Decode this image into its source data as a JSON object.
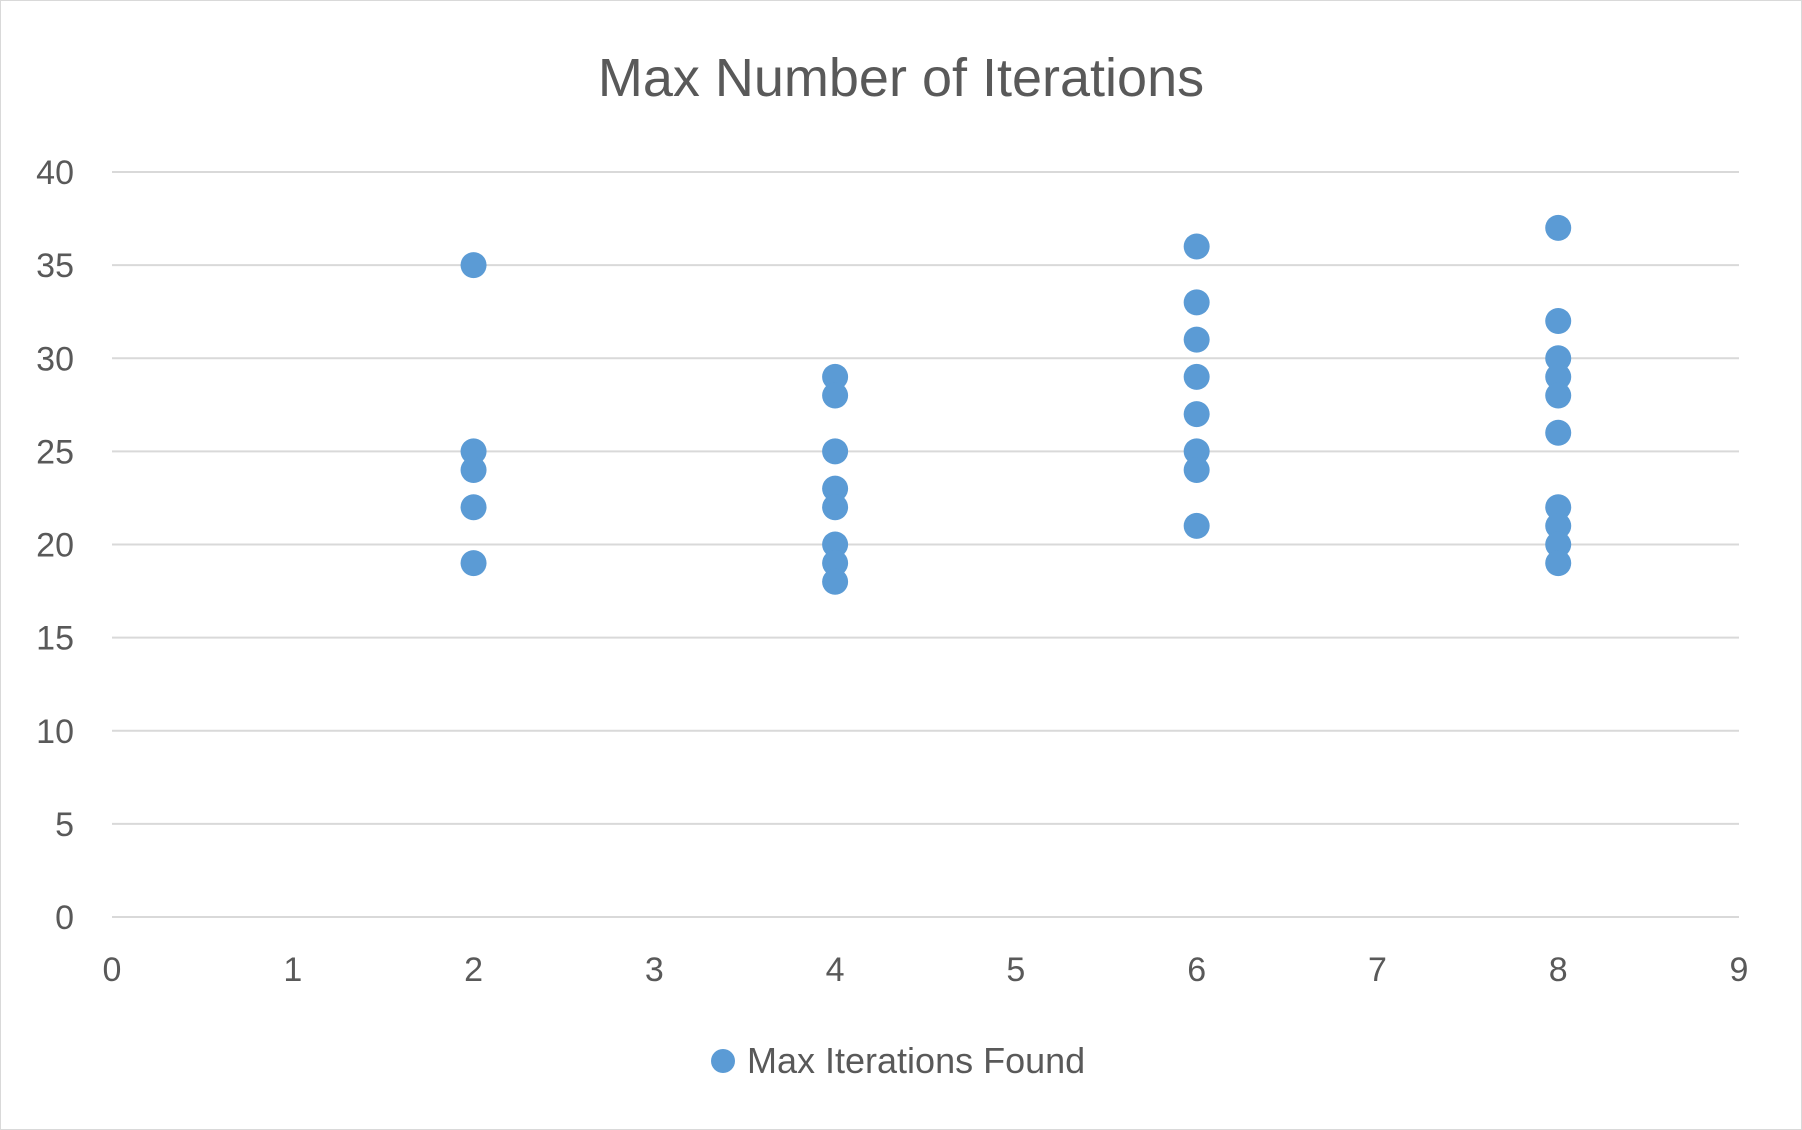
{
  "chart_data": {
    "type": "scatter",
    "title": "Max Number of Iterations",
    "xlabel": "",
    "ylabel": "",
    "xlim": [
      0,
      9
    ],
    "ylim": [
      0,
      40
    ],
    "x_ticks": [
      "0",
      "1",
      "2",
      "3",
      "4",
      "5",
      "6",
      "7",
      "8",
      "9"
    ],
    "y_ticks": [
      "0",
      "5",
      "10",
      "15",
      "20",
      "25",
      "30",
      "35",
      "40"
    ],
    "grid": "horizontal",
    "legend_position": "bottom",
    "series": [
      {
        "name": "Max Iterations Found",
        "color": "#5b9bd5",
        "marker": "circle",
        "points": [
          {
            "x": 2,
            "y": 35
          },
          {
            "x": 2,
            "y": 25
          },
          {
            "x": 2,
            "y": 24
          },
          {
            "x": 2,
            "y": 22
          },
          {
            "x": 2,
            "y": 19
          },
          {
            "x": 4,
            "y": 29
          },
          {
            "x": 4,
            "y": 28
          },
          {
            "x": 4,
            "y": 25
          },
          {
            "x": 4,
            "y": 23
          },
          {
            "x": 4,
            "y": 22
          },
          {
            "x": 4,
            "y": 20
          },
          {
            "x": 4,
            "y": 19
          },
          {
            "x": 4,
            "y": 18
          },
          {
            "x": 6,
            "y": 36
          },
          {
            "x": 6,
            "y": 33
          },
          {
            "x": 6,
            "y": 31
          },
          {
            "x": 6,
            "y": 29
          },
          {
            "x": 6,
            "y": 27
          },
          {
            "x": 6,
            "y": 25
          },
          {
            "x": 6,
            "y": 24
          },
          {
            "x": 6,
            "y": 21
          },
          {
            "x": 8,
            "y": 37
          },
          {
            "x": 8,
            "y": 32
          },
          {
            "x": 8,
            "y": 30
          },
          {
            "x": 8,
            "y": 29
          },
          {
            "x": 8,
            "y": 28
          },
          {
            "x": 8,
            "y": 26
          },
          {
            "x": 8,
            "y": 22
          },
          {
            "x": 8,
            "y": 21
          },
          {
            "x": 8,
            "y": 20
          },
          {
            "x": 8,
            "y": 19
          }
        ]
      }
    ]
  },
  "colors": {
    "background": "#ffffff",
    "border": "#d9d9d9",
    "gridline": "#d9d9d9",
    "text": "#595959"
  }
}
